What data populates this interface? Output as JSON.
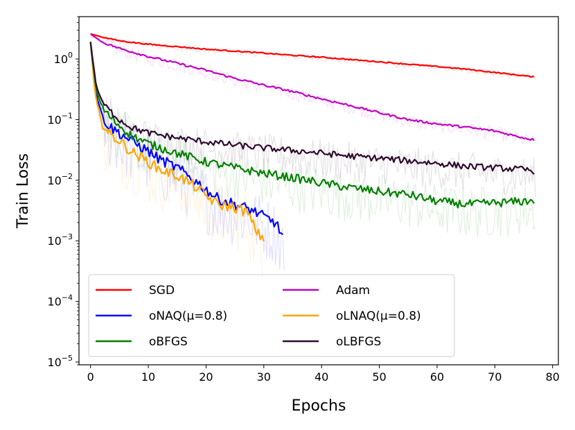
{
  "chart_data": {
    "type": "line",
    "title": "",
    "xlabel": "Epochs",
    "ylabel": "Train Loss",
    "xscale": "linear",
    "yscale": "log",
    "xlim": [
      -2,
      81
    ],
    "ylim": [
      9e-06,
      5
    ],
    "xticks": [
      0,
      10,
      20,
      30,
      40,
      50,
      60,
      70,
      80
    ],
    "xtick_labels": [
      "0",
      "10",
      "20",
      "30",
      "40",
      "50",
      "60",
      "70",
      "80"
    ],
    "yticks": [
      1e-05,
      0.0001,
      0.001,
      0.01,
      0.1,
      1
    ],
    "ytick_labels": [
      {
        "base": "10",
        "exp": "−5"
      },
      {
        "base": "10",
        "exp": "−4"
      },
      {
        "base": "10",
        "exp": "−3"
      },
      {
        "base": "10",
        "exp": "−2"
      },
      {
        "base": "10",
        "exp": "−1"
      },
      {
        "base": "10",
        "exp": "0"
      }
    ],
    "legend_position": "lower-left",
    "legend_columns": 2,
    "series": [
      {
        "name": "SGD",
        "color": "#ff0000",
        "x": [
          0,
          2,
          5,
          10,
          15,
          20,
          25,
          30,
          35,
          40,
          45,
          50,
          55,
          60,
          65,
          70,
          75,
          77
        ],
        "y": [
          2.6,
          2.3,
          2.0,
          1.75,
          1.6,
          1.45,
          1.35,
          1.25,
          1.15,
          1.07,
          0.98,
          0.9,
          0.82,
          0.75,
          0.68,
          0.6,
          0.53,
          0.5
        ],
        "noise": 0.05
      },
      {
        "name": "Adam",
        "color": "#c000c0",
        "x": [
          0,
          2,
          5,
          10,
          15,
          20,
          25,
          30,
          35,
          40,
          45,
          50,
          55,
          60,
          65,
          70,
          75,
          77
        ],
        "y": [
          2.6,
          1.9,
          1.5,
          1.1,
          0.85,
          0.65,
          0.48,
          0.37,
          0.29,
          0.22,
          0.17,
          0.13,
          0.1,
          0.085,
          0.075,
          0.065,
          0.05,
          0.046
        ],
        "noise": 0.1
      },
      {
        "name": "oNAQ(μ=0.8)",
        "color": "#0000ff",
        "x": [
          0,
          0.5,
          1,
          2,
          3,
          5,
          7,
          10,
          12,
          15,
          18,
          20,
          22,
          25,
          28,
          30,
          32,
          33.5
        ],
        "y": [
          1.9,
          0.6,
          0.25,
          0.12,
          0.08,
          0.06,
          0.045,
          0.03,
          0.022,
          0.016,
          0.01,
          0.007,
          0.005,
          0.004,
          0.0032,
          0.0025,
          0.002,
          0.0011
        ],
        "noise": 0.5
      },
      {
        "name": "oLNAQ(μ=0.8)",
        "color": "#ffa500",
        "x": [
          0,
          0.5,
          1,
          2,
          3,
          5,
          7,
          10,
          12,
          15,
          18,
          20,
          22,
          25,
          27,
          28,
          29,
          30
        ],
        "y": [
          1.9,
          0.5,
          0.2,
          0.09,
          0.06,
          0.045,
          0.03,
          0.02,
          0.015,
          0.012,
          0.008,
          0.0055,
          0.004,
          0.0035,
          0.003,
          0.002,
          0.0013,
          0.0011
        ],
        "noise": 0.5
      },
      {
        "name": "oBFGS",
        "color": "#008000",
        "x": [
          0,
          0.5,
          1,
          2,
          3,
          5,
          7,
          10,
          15,
          20,
          25,
          30,
          35,
          40,
          45,
          50,
          55,
          60,
          65,
          70,
          75,
          77
        ],
        "y": [
          1.9,
          0.7,
          0.3,
          0.16,
          0.12,
          0.08,
          0.055,
          0.04,
          0.028,
          0.02,
          0.016,
          0.013,
          0.011,
          0.009,
          0.0075,
          0.0065,
          0.0058,
          0.0045,
          0.004,
          0.0042,
          0.0045,
          0.0047
        ],
        "noise": 0.4
      },
      {
        "name": "oLBFGS",
        "color": "#2d0a2d",
        "x": [
          0,
          0.5,
          1,
          2,
          3,
          5,
          7,
          10,
          15,
          20,
          25,
          30,
          35,
          40,
          45,
          50,
          55,
          60,
          65,
          70,
          75,
          77
        ],
        "y": [
          1.9,
          0.8,
          0.35,
          0.2,
          0.15,
          0.1,
          0.075,
          0.06,
          0.05,
          0.043,
          0.038,
          0.034,
          0.031,
          0.028,
          0.025,
          0.023,
          0.021,
          0.019,
          0.017,
          0.016,
          0.015,
          0.014
        ],
        "noise": 0.3
      }
    ]
  }
}
